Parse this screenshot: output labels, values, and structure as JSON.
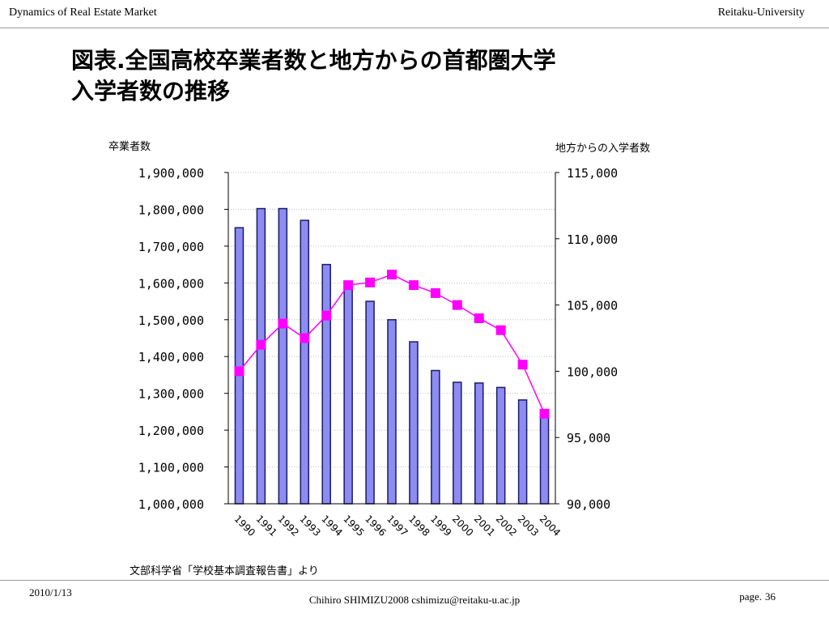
{
  "header": {
    "left": "Dynamics of Real Estate Market",
    "right": "Reitaku-University"
  },
  "slide": {
    "title_line1": "図表.全国高校卒業者数と地方からの首都圏大学",
    "title_line2": "入学者数の推移",
    "source": "文部科学省「学校基本調査報告書」より"
  },
  "footer": {
    "date": "2010/1/13",
    "author": "Chihiro SHIMIZU2008 cshimizu@reitaku-u.ac.jp",
    "page_label": "page.",
    "page_number": "36"
  },
  "colors": {
    "bar_fill": "#8c8cf2",
    "bar_stroke": "#1a1a66",
    "line": "#ff00ff",
    "grid": "#bfbfbf"
  },
  "chart_data": {
    "type": "bar+line",
    "categories": [
      "1990",
      "1991",
      "1992",
      "1993",
      "1994",
      "1995",
      "1996",
      "1997",
      "1998",
      "1999",
      "2000",
      "2001",
      "2002",
      "2003",
      "2004"
    ],
    "left_axis": {
      "label": "卒業者数",
      "ylim": [
        1000000,
        1900000
      ],
      "ticks": [
        "1,000,000",
        "1,100,000",
        "1,200,000",
        "1,300,000",
        "1,400,000",
        "1,500,000",
        "1,600,000",
        "1,700,000",
        "1,800,000",
        "1,900,000"
      ]
    },
    "right_axis": {
      "label": "地方からの入学者数",
      "ylim": [
        90000,
        115000
      ],
      "ticks": [
        "90,000",
        "95,000",
        "100,000",
        "105,000",
        "110,000",
        "115,000"
      ]
    },
    "series": [
      {
        "type": "bar",
        "axis": "left",
        "values": [
          1750000,
          1802000,
          1802000,
          1770000,
          1650000,
          1590000,
          1550000,
          1500000,
          1440000,
          1362000,
          1330000,
          1328000,
          1316000,
          1282000,
          1237000
        ]
      },
      {
        "type": "line",
        "axis": "right",
        "values": [
          100000,
          102000,
          103600,
          102500,
          104200,
          106500,
          106700,
          107300,
          106500,
          105900,
          105000,
          104000,
          103100,
          100500,
          96800
        ]
      }
    ],
    "grid": true,
    "grid_style": "dotted"
  }
}
